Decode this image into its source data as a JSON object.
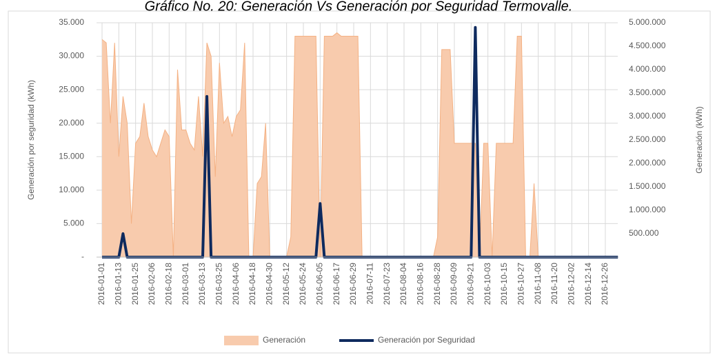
{
  "chart_data": {
    "type": "area",
    "title": "Gráfico No. 20: Generación Vs Generación por Seguridad Termovalle.",
    "y_label": "Generación por seguridad (kWh)",
    "y2_label": "Generación (kWh)",
    "categories": [
      "2016-01-01",
      null,
      null,
      null,
      "2016-01-13",
      null,
      null,
      null,
      "2016-01-25",
      null,
      null,
      null,
      "2016-02-06",
      null,
      null,
      null,
      "2016-02-18",
      null,
      null,
      null,
      "2016-03-01",
      null,
      null,
      null,
      "2016-03-13",
      null,
      null,
      null,
      "2016-03-25",
      null,
      null,
      null,
      "2016-04-06",
      null,
      null,
      null,
      "2016-04-18",
      null,
      null,
      null,
      "2016-04-30",
      null,
      null,
      null,
      "2016-05-12",
      null,
      null,
      null,
      "2016-05-24",
      null,
      null,
      null,
      "2016-06-05",
      null,
      null,
      null,
      "2016-06-17",
      null,
      null,
      null,
      "2016-06-29",
      null,
      null,
      null,
      "2016-07-11",
      null,
      null,
      null,
      "2016-07-23",
      null,
      null,
      null,
      "2016-08-04",
      null,
      null,
      null,
      "2016-08-16",
      null,
      null,
      null,
      "2016-08-28",
      null,
      null,
      null,
      "2016-09-09",
      null,
      null,
      null,
      "2016-09-21",
      null,
      null,
      null,
      "2016-10-03",
      null,
      null,
      null,
      "2016-10-15",
      null,
      null,
      null,
      "2016-10-27",
      null,
      null,
      null,
      "2016-11-08",
      null,
      null,
      null,
      "2016-11-20",
      null,
      null,
      null,
      "2016-12-02",
      null,
      null,
      null,
      "2016-12-14",
      null,
      null,
      null,
      "2016-12-26",
      null,
      null,
      null
    ],
    "series": [
      {
        "name": "Generación",
        "color": "#f8cbad",
        "type": "area",
        "axis": "y2",
        "values": [
          4643000,
          4571000,
          2857000,
          4571000,
          2143000,
          3429000,
          2857000,
          714000,
          2429000,
          2571000,
          3286000,
          2571000,
          2286000,
          2143000,
          2429000,
          2714000,
          2571000,
          0,
          4000000,
          2714000,
          2714000,
          2429000,
          2286000,
          3429000,
          2143000,
          4571000,
          4286000,
          1714000,
          4143000,
          2857000,
          3000000,
          2571000,
          3000000,
          3143000,
          4571000,
          0,
          0,
          1571000,
          1714000,
          2857000,
          0,
          0,
          0,
          0,
          0,
          429000,
          4714000,
          4714000,
          4714000,
          4714000,
          4714000,
          4714000,
          0,
          4714000,
          4714000,
          4714000,
          4786000,
          4714000,
          4714000,
          4714000,
          4714000,
          4714000,
          0,
          0,
          0,
          0,
          0,
          0,
          0,
          0,
          0,
          0,
          0,
          0,
          0,
          0,
          0,
          0,
          0,
          0,
          429000,
          4429000,
          4429000,
          4429000,
          2429000,
          2429000,
          2429000,
          2429000,
          2429000,
          2429000,
          0,
          2429000,
          2429000,
          0,
          2429000,
          2429000,
          2429000,
          2429000,
          2429000,
          4714000,
          4714000,
          0,
          0,
          1571000,
          0,
          0,
          0,
          0,
          0,
          0,
          0,
          0,
          0,
          0,
          0,
          0,
          0,
          0,
          0,
          0,
          0,
          0,
          0,
          0
        ]
      },
      {
        "name": "Generación por Seguridad",
        "color": "#0e2a5e",
        "type": "line",
        "values": [
          0,
          0,
          0,
          0,
          0,
          3500,
          0,
          0,
          0,
          0,
          0,
          0,
          0,
          0,
          0,
          0,
          0,
          0,
          0,
          0,
          0,
          0,
          0,
          0,
          0,
          24000,
          0,
          0,
          0,
          0,
          0,
          0,
          0,
          0,
          0,
          0,
          0,
          0,
          0,
          0,
          0,
          0,
          0,
          0,
          0,
          0,
          0,
          0,
          0,
          0,
          0,
          0,
          8000,
          0,
          0,
          0,
          0,
          0,
          0,
          0,
          0,
          0,
          0,
          0,
          0,
          0,
          0,
          0,
          0,
          0,
          0,
          0,
          0,
          0,
          0,
          0,
          0,
          0,
          0,
          0,
          0,
          0,
          0,
          0,
          0,
          0,
          0,
          0,
          0,
          34300,
          0,
          0,
          0,
          0,
          0,
          0,
          0,
          0,
          0,
          0,
          0,
          0,
          0,
          0,
          0,
          0,
          0,
          0,
          0,
          0,
          0,
          0,
          0,
          0,
          0,
          0,
          0,
          0,
          0,
          0,
          0,
          0,
          0,
          0
        ]
      }
    ],
    "ylim": [
      0,
      35000
    ],
    "yticks": [
      {
        "value": 0,
        "label": "-"
      },
      {
        "value": 5000,
        "label": "5.000"
      },
      {
        "value": 10000,
        "label": "10.000"
      },
      {
        "value": 15000,
        "label": "15.000"
      },
      {
        "value": 20000,
        "label": "20.000"
      },
      {
        "value": 25000,
        "label": "25.000"
      },
      {
        "value": 30000,
        "label": "30.000"
      },
      {
        "value": 35000,
        "label": "35.000"
      }
    ],
    "y2lim": [
      0,
      5000000
    ],
    "y2ticks": [
      {
        "value": 500000,
        "label": "500.000"
      },
      {
        "value": 1000000,
        "label": "1.000.000"
      },
      {
        "value": 1500000,
        "label": "1.500.000"
      },
      {
        "value": 2000000,
        "label": "2.000.000"
      },
      {
        "value": 2500000,
        "label": "2.500.000"
      },
      {
        "value": 3000000,
        "label": "3.000.000"
      },
      {
        "value": 3500000,
        "label": "3.500.000"
      },
      {
        "value": 4000000,
        "label": "4.000.000"
      },
      {
        "value": 4500000,
        "label": "4.500.000"
      },
      {
        "value": 5000000,
        "label": "5.000.000"
      }
    ],
    "grid": true,
    "legend": "bottom"
  }
}
